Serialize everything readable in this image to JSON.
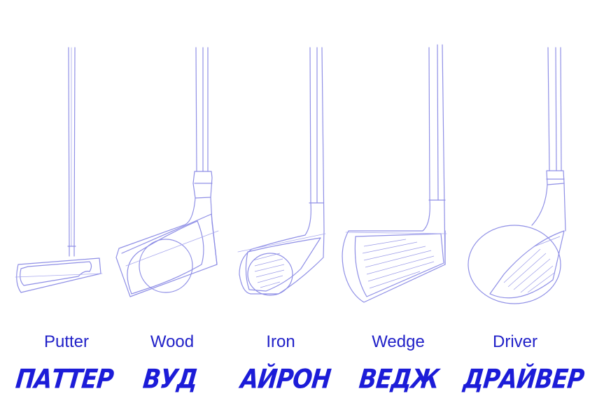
{
  "clubs": [
    {
      "id": "putter",
      "label_en": "Putter",
      "label_ru": "ПАТТЕР"
    },
    {
      "id": "wood",
      "label_en": "Wood",
      "label_ru": "ВУД"
    },
    {
      "id": "iron",
      "label_en": "Iron",
      "label_ru": "АЙРОН"
    },
    {
      "id": "wedge",
      "label_en": "Wedge",
      "label_ru": "ВЕДЖ"
    },
    {
      "id": "driver",
      "label_en": "Driver",
      "label_ru": "ДРАЙВЕР"
    }
  ],
  "colors": {
    "sketch_line": "#8f8fe6",
    "label_text": "#2020c8"
  }
}
